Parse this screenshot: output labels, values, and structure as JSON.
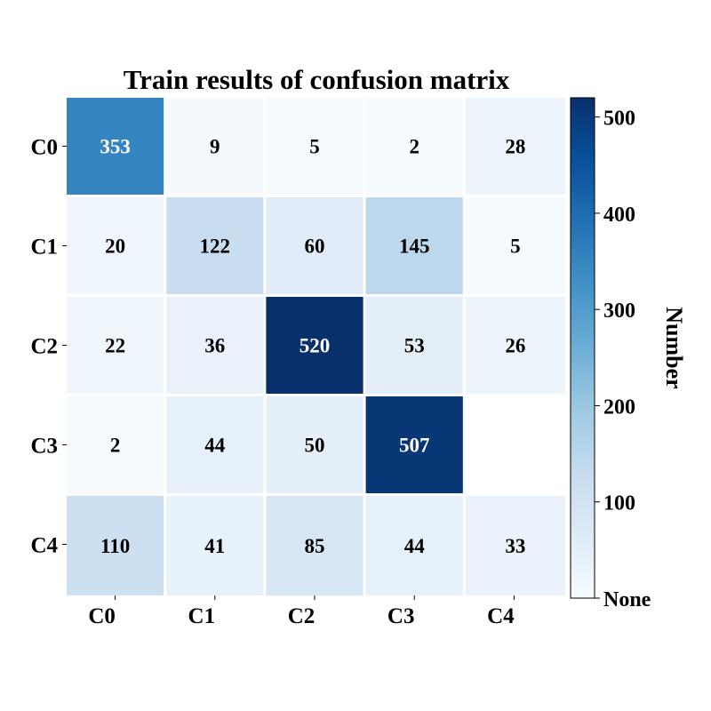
{
  "chart_data": {
    "type": "heatmap",
    "title": "Train results of confusion matrix",
    "row_labels": [
      "C0",
      "C1",
      "C2",
      "C3",
      "C4"
    ],
    "col_labels": [
      "C0",
      "C1",
      "C2",
      "C3",
      "C4"
    ],
    "values": [
      [
        353,
        9,
        5,
        2,
        28
      ],
      [
        20,
        122,
        60,
        145,
        5
      ],
      [
        22,
        36,
        520,
        53,
        26
      ],
      [
        2,
        44,
        50,
        507,
        null
      ],
      [
        110,
        41,
        85,
        44,
        33
      ]
    ],
    "colormap": "Blues",
    "colorbar": {
      "label": "Number",
      "range": [
        0,
        520
      ],
      "ticks": [
        {
          "value": 0,
          "label": "None"
        },
        {
          "value": 100,
          "label": "100"
        },
        {
          "value": 200,
          "label": "200"
        },
        {
          "value": 300,
          "label": "300"
        },
        {
          "value": 400,
          "label": "400"
        },
        {
          "value": 500,
          "label": "500"
        }
      ]
    },
    "grid_color": "#ffffff",
    "text_color_dark": "#000000",
    "text_color_light": "#ffffff"
  }
}
